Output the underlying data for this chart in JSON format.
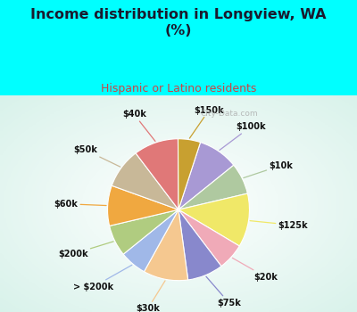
{
  "title": "Income distribution in Longview, WA\n(%)",
  "subtitle": "Hispanic or Latino residents",
  "title_color": "#1a1a2e",
  "subtitle_color": "#cc4444",
  "bg_cyan": "#00ffff",
  "bg_chart_colors": [
    "#e8f8f0",
    "#d0eee8"
  ],
  "labels": [
    "$100k",
    "$10k",
    "$125k",
    "$20k",
    "$75k",
    "$30k",
    "> $200k",
    "$200k",
    "$60k",
    "$50k",
    "$40k",
    "$150k"
  ],
  "values": [
    9,
    7,
    12,
    6,
    8,
    10,
    6,
    7,
    9,
    9,
    10,
    5
  ],
  "colors": [
    "#a899d4",
    "#afc9a0",
    "#f0e868",
    "#f0aab8",
    "#8888cc",
    "#f5c890",
    "#a0b8e8",
    "#b0cc80",
    "#f0a840",
    "#c8b898",
    "#e07878",
    "#c8a030"
  ],
  "line_colors": [
    "#a899d4",
    "#afc9a0",
    "#f0e868",
    "#f0aab8",
    "#8888cc",
    "#f5c890",
    "#a0b8e8",
    "#b0cc80",
    "#f0a840",
    "#c8b898",
    "#e07878",
    "#c8a030"
  ],
  "watermark": "City-Data.com",
  "startangle": 72
}
